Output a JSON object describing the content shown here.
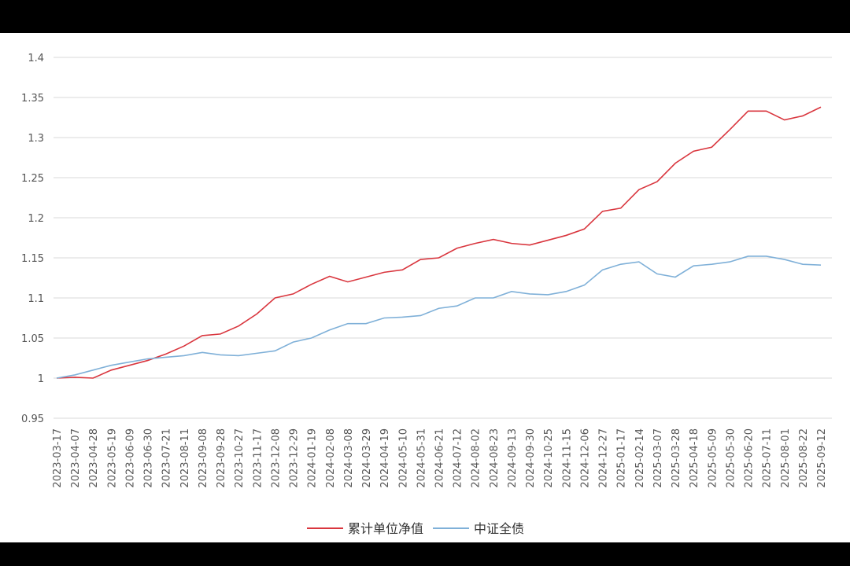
{
  "chart_data": {
    "type": "line",
    "categories": [
      "2023-03-17",
      "2023-04-07",
      "2023-04-28",
      "2023-05-19",
      "2023-06-09",
      "2023-06-30",
      "2023-07-21",
      "2023-08-11",
      "2023-09-08",
      "2023-09-28",
      "2023-10-27",
      "2023-11-17",
      "2023-12-08",
      "2023-12-29",
      "2024-01-19",
      "2024-02-08",
      "2024-03-08",
      "2024-03-29",
      "2024-04-19",
      "2024-05-10",
      "2024-05-31",
      "2024-06-21",
      "2024-07-12",
      "2024-08-02",
      "2024-08-23",
      "2024-09-13",
      "2024-09-30",
      "2024-10-25",
      "2024-11-15",
      "2024-12-06",
      "2024-12-27",
      "2025-01-17",
      "2025-02-14",
      "2025-03-07",
      "2025-03-28",
      "2025-04-18",
      "2025-05-09",
      "2025-05-30",
      "2025-06-20",
      "2025-07-11",
      "2025-08-01",
      "2025-08-22",
      "2025-09-12"
    ],
    "series": [
      {
        "name": "累计单位净值",
        "color": "#d9363e",
        "values": [
          1.0,
          1.001,
          1.0,
          1.01,
          1.016,
          1.022,
          1.03,
          1.04,
          1.053,
          1.055,
          1.065,
          1.08,
          1.1,
          1.105,
          1.117,
          1.127,
          1.12,
          1.126,
          1.132,
          1.135,
          1.148,
          1.15,
          1.162,
          1.168,
          1.173,
          1.168,
          1.166,
          1.172,
          1.178,
          1.186,
          1.208,
          1.212,
          1.235,
          1.245,
          1.268,
          1.283,
          1.288,
          1.31,
          1.333,
          1.333,
          1.322,
          1.327,
          1.338
        ]
      },
      {
        "name": "中证全债",
        "color": "#7fb0d8",
        "values": [
          1.0,
          1.004,
          1.01,
          1.016,
          1.02,
          1.024,
          1.026,
          1.028,
          1.032,
          1.029,
          1.028,
          1.031,
          1.034,
          1.045,
          1.05,
          1.06,
          1.068,
          1.068,
          1.075,
          1.076,
          1.078,
          1.087,
          1.09,
          1.1,
          1.1,
          1.108,
          1.105,
          1.104,
          1.108,
          1.116,
          1.135,
          1.142,
          1.145,
          1.13,
          1.126,
          1.14,
          1.142,
          1.145,
          1.152,
          1.152,
          1.148,
          1.142,
          1.141
        ]
      }
    ],
    "ylim": [
      0.95,
      1.4
    ],
    "yticks": [
      0.95,
      1,
      1.05,
      1.1,
      1.15,
      1.2,
      1.25,
      1.3,
      1.35,
      1.4
    ],
    "grid": true,
    "legend": "bottom"
  }
}
